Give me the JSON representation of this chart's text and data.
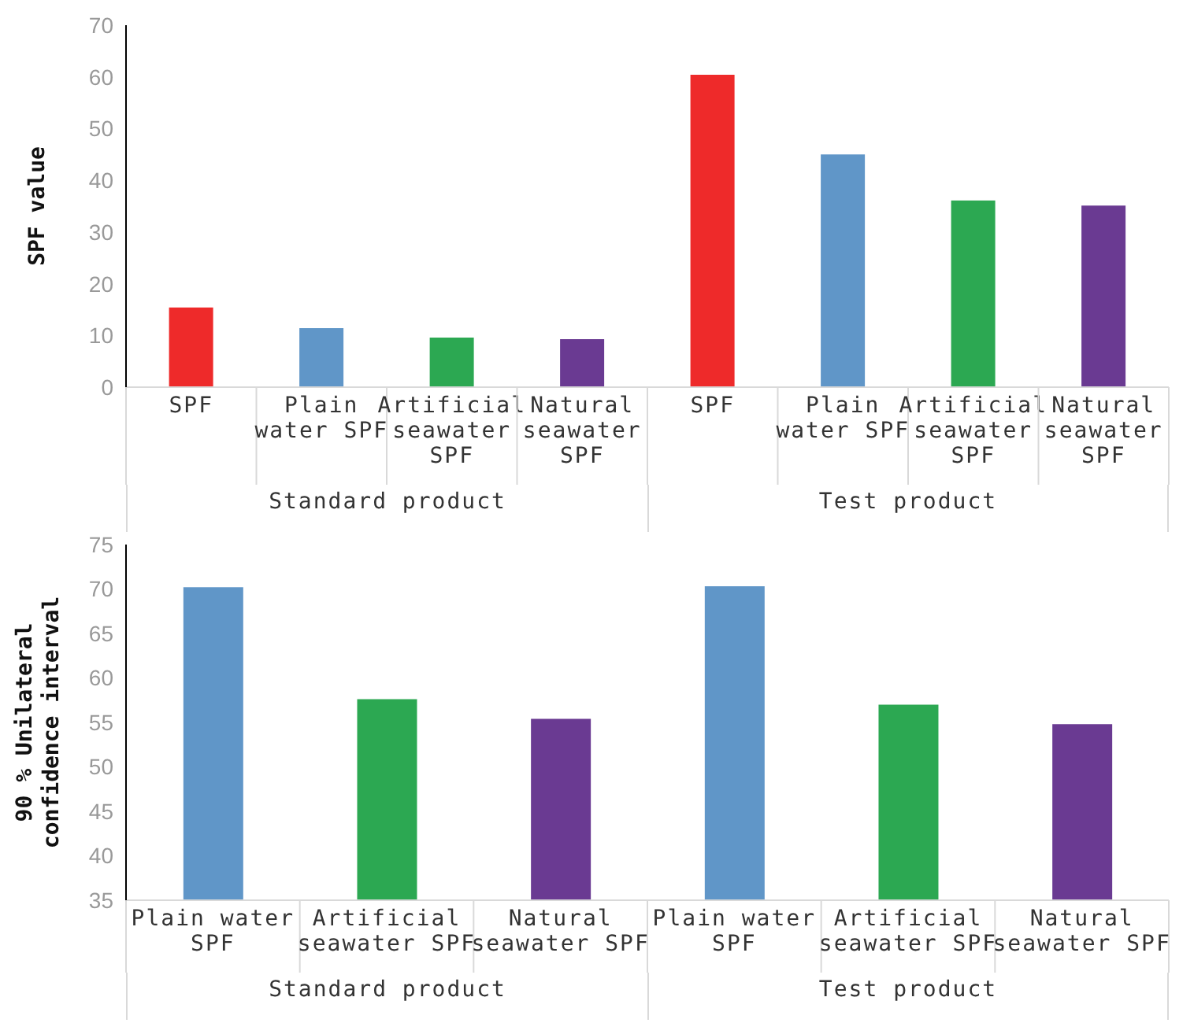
{
  "chart_data": [
    {
      "type": "bar",
      "ylabel": "SPF value",
      "categories": [
        "SPF",
        "Plain water SPF",
        "Artificial seawater SPF",
        "Natural seawater SPF",
        "SPF",
        "Plain water SPF",
        "Artificial seawater SPF",
        "Natural seawater SPF"
      ],
      "values": [
        15.4,
        11.4,
        9.6,
        9.3,
        60.4,
        45.0,
        36.1,
        35.1
      ],
      "colors": [
        "#ee2a2a",
        "#6096c8",
        "#2ca852",
        "#6a3a92",
        "#ee2a2a",
        "#6096c8",
        "#2ca852",
        "#6a3a92"
      ],
      "ylim": [
        0,
        70
      ],
      "yticks": [
        0,
        10,
        20,
        30,
        40,
        50,
        60,
        70
      ],
      "grid": false,
      "legend": false,
      "annotations": [
        "Standard product",
        "Test product"
      ]
    },
    {
      "type": "bar",
      "ylabel": "90 % Unilateral confidence interval",
      "categories": [
        "Plain water SPF",
        "Artificial seawater SPF",
        "Natural seawater SPF",
        "Plain water SPF",
        "Artificial seawater SPF",
        "Natural seawater SPF"
      ],
      "values": [
        70.2,
        57.6,
        55.4,
        70.3,
        57.0,
        54.8
      ],
      "colors": [
        "#6096c8",
        "#2ca852",
        "#6a3a92",
        "#6096c8",
        "#2ca852",
        "#6a3a92"
      ],
      "ylim": [
        35,
        75
      ],
      "yticks": [
        35,
        40,
        45,
        50,
        55,
        60,
        65,
        70,
        75
      ],
      "grid": false,
      "legend": false,
      "annotations": [
        "Standard product",
        "Test product"
      ]
    }
  ]
}
